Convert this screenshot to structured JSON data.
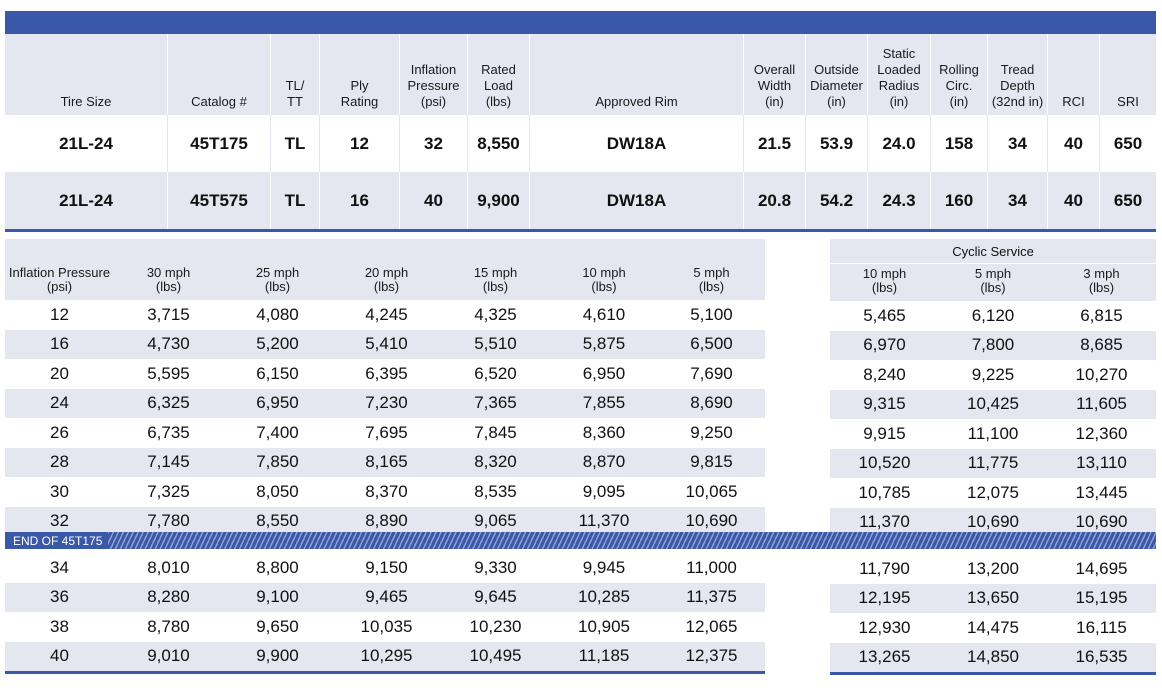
{
  "spec_table": {
    "headers": [
      "Tire Size",
      "Catalog #",
      "TL/\nTT",
      "Ply\nRating",
      "Inflation\nPressure\n(psi)",
      "Rated\nLoad\n(lbs)",
      "Approved Rim",
      "Overall\nWidth\n(in)",
      "Outside\nDiameter\n(in)",
      "Static\nLoaded\nRadius\n(in)",
      "Rolling\nCirc.\n(in)",
      "Tread\nDepth\n(32nd in)",
      "RCI",
      "SRI"
    ],
    "rows": [
      [
        "21L-24",
        "45T175",
        "TL",
        "12",
        "32",
        "8,550",
        "DW18A",
        "21.5",
        "53.9",
        "24.0",
        "158",
        "34",
        "40",
        "650"
      ],
      [
        "21L-24",
        "45T575",
        "TL",
        "16",
        "40",
        "9,900",
        "DW18A",
        "20.8",
        "54.2",
        "24.3",
        "160",
        "34",
        "40",
        "650"
      ]
    ]
  },
  "load_table": {
    "headers": [
      "Inflation Pressure\n(psi)",
      "30 mph\n(lbs)",
      "25 mph\n(lbs)",
      "20 mph\n(lbs)",
      "15 mph\n(lbs)",
      "10 mph\n(lbs)",
      "5 mph\n(lbs)"
    ],
    "rows": [
      [
        "12",
        "3,715",
        "4,080",
        "4,245",
        "4,325",
        "4,610",
        "5,100"
      ],
      [
        "16",
        "4,730",
        "5,200",
        "5,410",
        "5,510",
        "5,875",
        "6,500"
      ],
      [
        "20",
        "5,595",
        "6,150",
        "6,395",
        "6,520",
        "6,950",
        "7,690"
      ],
      [
        "24",
        "6,325",
        "6,950",
        "7,230",
        "7,365",
        "7,855",
        "8,690"
      ],
      [
        "26",
        "6,735",
        "7,400",
        "7,695",
        "7,845",
        "8,360",
        "9,250"
      ],
      [
        "28",
        "7,145",
        "7,850",
        "8,165",
        "8,320",
        "8,870",
        "9,815"
      ],
      [
        "30",
        "7,325",
        "8,050",
        "8,370",
        "8,535",
        "9,095",
        "10,065"
      ],
      [
        "32",
        "7,780",
        "8,550",
        "8,890",
        "9,065",
        "11,370",
        "10,690"
      ],
      [
        "34",
        "8,010",
        "8,800",
        "9,150",
        "9,330",
        "9,945",
        "11,000"
      ],
      [
        "36",
        "8,280",
        "9,100",
        "9,465",
        "9,645",
        "10,285",
        "11,375"
      ],
      [
        "38",
        "8,780",
        "9,650",
        "10,035",
        "10,230",
        "10,905",
        "12,065"
      ],
      [
        "40",
        "9,010",
        "9,900",
        "10,295",
        "10,495",
        "11,185",
        "12,375"
      ]
    ]
  },
  "cyclic_table": {
    "title": "Cyclic Service",
    "headers": [
      "10 mph\n(lbs)",
      "5 mph\n(lbs)",
      "3 mph\n(lbs)"
    ],
    "rows": [
      [
        "5,465",
        "6,120",
        "6,815"
      ],
      [
        "6,970",
        "7,800",
        "8,685"
      ],
      [
        "8,240",
        "9,225",
        "10,270"
      ],
      [
        "9,315",
        "10,425",
        "11,605"
      ],
      [
        "9,915",
        "11,100",
        "12,360"
      ],
      [
        "10,520",
        "11,775",
        "13,110"
      ],
      [
        "10,785",
        "12,075",
        "13,445"
      ],
      [
        "11,370",
        "10,690",
        "10,690"
      ],
      [
        "11,790",
        "13,200",
        "14,695"
      ],
      [
        "12,195",
        "13,650",
        "15,195"
      ],
      [
        "12,930",
        "14,475",
        "16,115"
      ],
      [
        "13,265",
        "14,850",
        "16,535"
      ]
    ]
  },
  "end_marker": "END OF 45T175",
  "colors": {
    "accent": "#3a58a8",
    "row_shade": "#e4e6f0"
  }
}
